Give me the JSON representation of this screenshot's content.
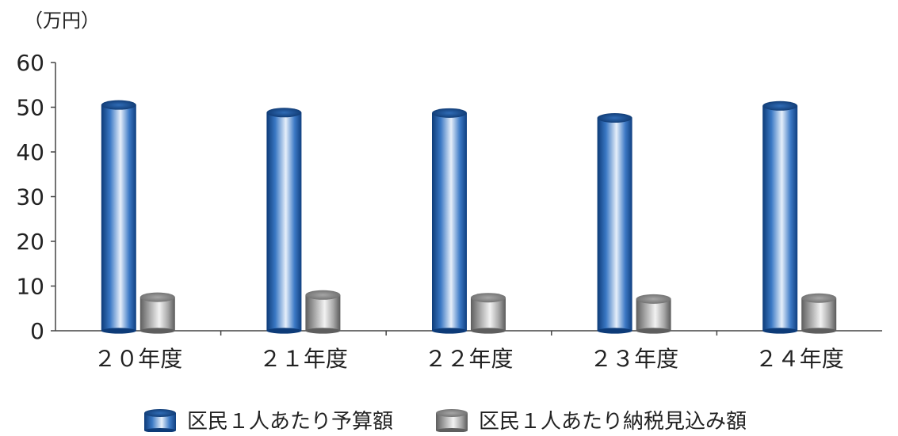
{
  "chart_data": {
    "type": "bar",
    "unit_label": "（万円）",
    "categories": [
      "２０年度",
      "２１年度",
      "２２年度",
      "２３年度",
      "２４年度"
    ],
    "series": [
      {
        "name": "区民１人あたり予算額",
        "values": [
          50.5,
          48.8,
          48.7,
          47.6,
          50.3
        ],
        "color": "#1f5fa8"
      },
      {
        "name": "区民１人あたり納税見込み額",
        "values": [
          7.5,
          8.0,
          7.4,
          7.1,
          7.3
        ],
        "color": "#9a9a9a"
      }
    ],
    "ylim": [
      0,
      60
    ],
    "yticks": [
      "0",
      "10",
      "20",
      "30",
      "40",
      "50",
      "60"
    ],
    "grid": false,
    "legend_position": "bottom"
  }
}
